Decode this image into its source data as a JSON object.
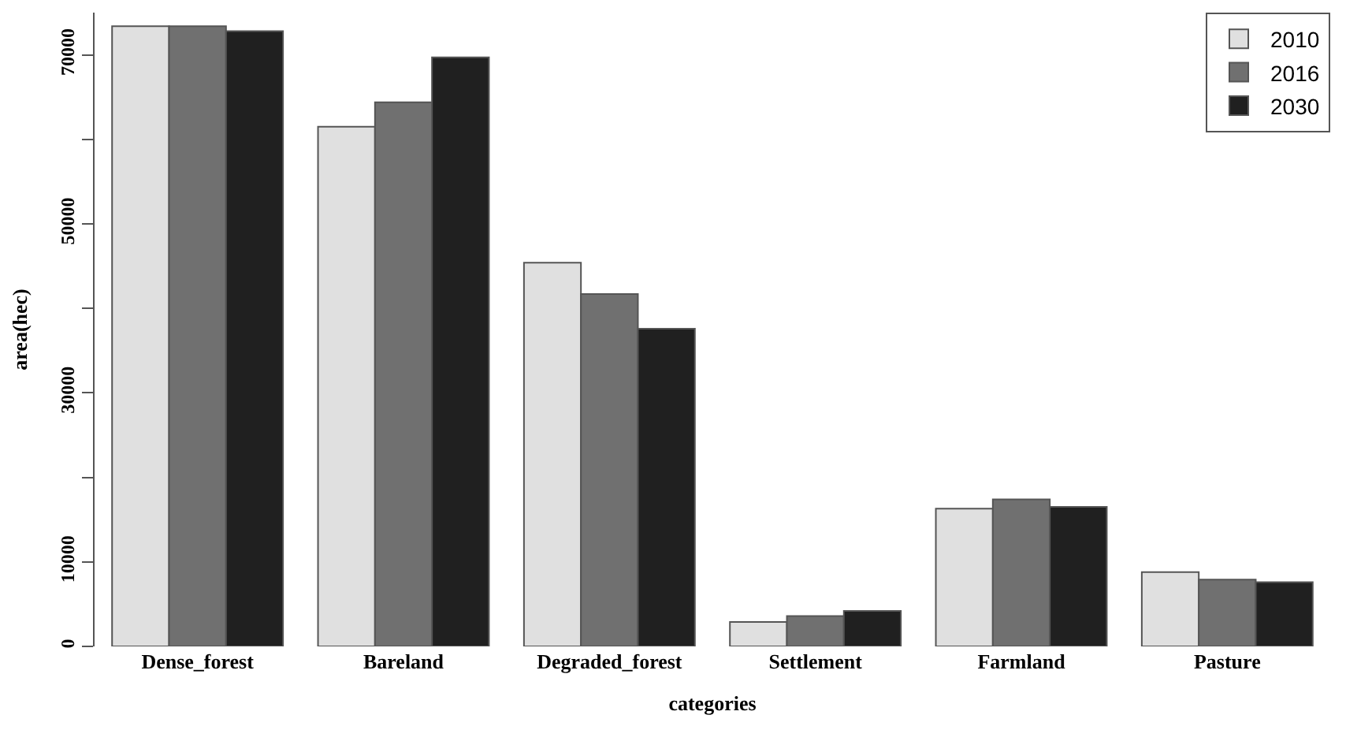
{
  "chart_data": {
    "type": "bar",
    "xlabel": "categories",
    "ylabel": "area(hec)",
    "categories": [
      "Dense_forest",
      "Bareland",
      "Degraded_forest",
      "Settlement",
      "Farmland",
      "Pasture"
    ],
    "series": [
      {
        "name": "2010",
        "color": "#e0e0e0",
        "values": [
          73400,
          61500,
          45400,
          2900,
          16300,
          8800
        ]
      },
      {
        "name": "2016",
        "color": "#707070",
        "values": [
          73400,
          64400,
          41700,
          3600,
          17400,
          7900
        ]
      },
      {
        "name": "2030",
        "color": "#202020",
        "values": [
          72800,
          69700,
          37600,
          4200,
          16500,
          7600
        ]
      }
    ],
    "ylim": [
      0,
      75000
    ],
    "yticks": [
      0,
      10000,
      {
        "value": 20000,
        "label": null
      },
      30000,
      {
        "value": 40000,
        "label": null
      },
      50000,
      {
        "value": 60000,
        "label": null
      },
      70000
    ],
    "legend": "top right"
  }
}
